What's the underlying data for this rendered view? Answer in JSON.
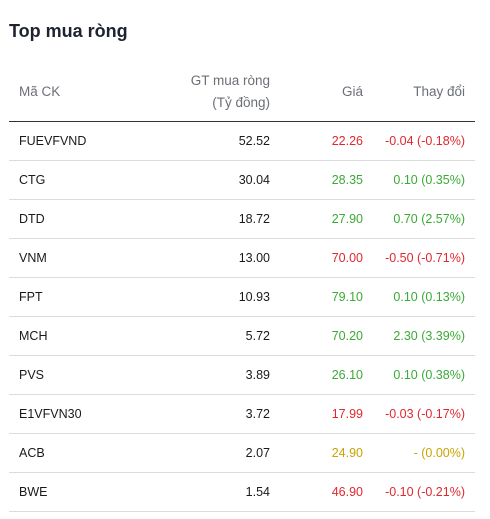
{
  "title": "Top mua ròng",
  "headers": {
    "code": "Mã CK",
    "value_line1": "GT mua ròng",
    "value_line2": "(Tỷ đồng)",
    "price": "Giá",
    "change": "Thay đổi"
  },
  "colors": {
    "up": "#3aaa35",
    "down": "#e0282e",
    "reference": "#c9a400"
  },
  "rows": [
    {
      "code": "FUEVFVND",
      "value": "52.52",
      "price": "22.26",
      "change": "-0.04 (-0.18%)",
      "status": "down"
    },
    {
      "code": "CTG",
      "value": "30.04",
      "price": "28.35",
      "change": "0.10 (0.35%)",
      "status": "up"
    },
    {
      "code": "DTD",
      "value": "18.72",
      "price": "27.90",
      "change": "0.70 (2.57%)",
      "status": "up"
    },
    {
      "code": "VNM",
      "value": "13.00",
      "price": "70.00",
      "change": "-0.50 (-0.71%)",
      "status": "down"
    },
    {
      "code": "FPT",
      "value": "10.93",
      "price": "79.10",
      "change": "0.10 (0.13%)",
      "status": "up"
    },
    {
      "code": "MCH",
      "value": "5.72",
      "price": "70.20",
      "change": "2.30 (3.39%)",
      "status": "up"
    },
    {
      "code": "PVS",
      "value": "3.89",
      "price": "26.10",
      "change": "0.10 (0.38%)",
      "status": "up"
    },
    {
      "code": "E1VFVN30",
      "value": "3.72",
      "price": "17.99",
      "change": "-0.03 (-0.17%)",
      "status": "down"
    },
    {
      "code": "ACB",
      "value": "2.07",
      "price": "24.90",
      "change": "- (0.00%)",
      "status": "ref"
    },
    {
      "code": "BWE",
      "value": "1.54",
      "price": "46.90",
      "change": "-0.10 (-0.21%)",
      "status": "down"
    }
  ]
}
